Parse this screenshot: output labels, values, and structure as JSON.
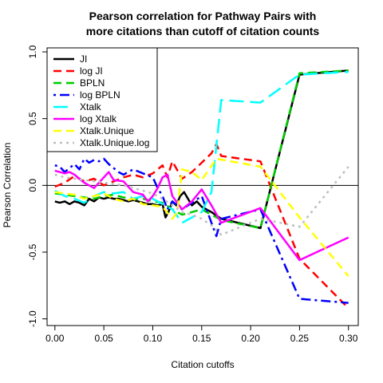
{
  "chart_data": {
    "type": "line",
    "title_lines": [
      "Pearson correlation for Pathway Pairs with",
      "more citations than cutoff of citation counts"
    ],
    "xlabel": "Citation cutoffs",
    "ylabel": "Pearson Correlation",
    "xlim": [
      -0.008,
      0.31
    ],
    "ylim": [
      -1.05,
      1.03
    ],
    "xticks": [
      0.0,
      0.05,
      0.1,
      0.15,
      0.2,
      0.25,
      0.3
    ],
    "xtick_labels": [
      "0.00",
      "0.05",
      "0.10",
      "0.15",
      "0.20",
      "0.25",
      "0.30"
    ],
    "yticks": [
      -1.0,
      -0.5,
      0.0,
      0.5,
      1.0
    ],
    "ytick_labels": [
      "-1.0",
      "-0.5",
      "0.0",
      "0.5",
      "1.0"
    ],
    "reference_line_y": 0,
    "grid": false,
    "legend_position": "top-left",
    "series": [
      {
        "name": "JI",
        "color": "#000000",
        "dash": "solid",
        "x": [
          0.0,
          0.005,
          0.01,
          0.015,
          0.02,
          0.025,
          0.03,
          0.035,
          0.04,
          0.045,
          0.05,
          0.055,
          0.06,
          0.065,
          0.07,
          0.075,
          0.08,
          0.085,
          0.09,
          0.095,
          0.1,
          0.105,
          0.11,
          0.113,
          0.116,
          0.12,
          0.124,
          0.128,
          0.132,
          0.136,
          0.14,
          0.145,
          0.15,
          0.16,
          0.17,
          0.21,
          0.25,
          0.3
        ],
        "y": [
          -0.12,
          -0.13,
          -0.12,
          -0.14,
          -0.12,
          -0.13,
          -0.15,
          -0.1,
          -0.12,
          -0.09,
          -0.1,
          -0.09,
          -0.1,
          -0.1,
          -0.11,
          -0.12,
          -0.11,
          -0.12,
          -0.13,
          -0.14,
          -0.14,
          -0.15,
          -0.14,
          -0.24,
          -0.2,
          -0.12,
          -0.15,
          -0.08,
          -0.05,
          -0.1,
          -0.15,
          -0.12,
          -0.16,
          -0.2,
          -0.25,
          -0.32,
          0.83,
          0.86
        ]
      },
      {
        "name": "log JI",
        "color": "#ff0000",
        "dash": "dashed",
        "x": [
          0.0,
          0.01,
          0.02,
          0.03,
          0.04,
          0.05,
          0.06,
          0.07,
          0.08,
          0.09,
          0.1,
          0.105,
          0.11,
          0.115,
          0.12,
          0.13,
          0.14,
          0.15,
          0.16,
          0.165,
          0.17,
          0.19,
          0.21,
          0.25,
          0.3
        ],
        "y": [
          -0.01,
          0.02,
          0.07,
          0.03,
          0.05,
          0.0,
          0.03,
          0.06,
          0.08,
          0.06,
          0.09,
          0.12,
          0.15,
          0.06,
          0.18,
          0.05,
          0.1,
          0.17,
          0.24,
          0.31,
          0.22,
          0.2,
          0.18,
          -0.55,
          -0.92
        ]
      },
      {
        "name": "BPLN",
        "color": "#00cc00",
        "dash": "dashed",
        "x": [
          0.0,
          0.01,
          0.02,
          0.03,
          0.04,
          0.05,
          0.06,
          0.07,
          0.08,
          0.09,
          0.1,
          0.11,
          0.12,
          0.13,
          0.14,
          0.15,
          0.17,
          0.21,
          0.25,
          0.3
        ],
        "y": [
          -0.06,
          -0.07,
          -0.08,
          -0.09,
          -0.1,
          -0.08,
          -0.07,
          -0.09,
          -0.1,
          -0.1,
          -0.12,
          -0.13,
          -0.18,
          -0.22,
          -0.2,
          -0.18,
          -0.26,
          -0.32,
          0.84,
          0.86
        ]
      },
      {
        "name": "log BPLN",
        "color": "#0000ff",
        "dash": "dotdash",
        "x": [
          0.0,
          0.005,
          0.01,
          0.015,
          0.02,
          0.025,
          0.03,
          0.035,
          0.04,
          0.045,
          0.05,
          0.055,
          0.06,
          0.065,
          0.07,
          0.08,
          0.09,
          0.1,
          0.105,
          0.11,
          0.115,
          0.12,
          0.13,
          0.14,
          0.15,
          0.16,
          0.165,
          0.17,
          0.21,
          0.25,
          0.3
        ],
        "y": [
          0.15,
          0.14,
          0.1,
          0.13,
          0.16,
          0.12,
          0.2,
          0.17,
          0.19,
          0.18,
          0.2,
          0.16,
          0.13,
          0.1,
          0.08,
          0.12,
          0.09,
          0.06,
          -0.02,
          -0.08,
          -0.18,
          -0.12,
          -0.18,
          -0.13,
          -0.08,
          -0.28,
          -0.38,
          -0.25,
          -0.18,
          -0.85,
          -0.88
        ]
      },
      {
        "name": "Xtalk",
        "color": "#00ffff",
        "dash": "longdash",
        "x": [
          0.0,
          0.01,
          0.02,
          0.03,
          0.04,
          0.05,
          0.06,
          0.07,
          0.08,
          0.09,
          0.1,
          0.11,
          0.12,
          0.13,
          0.14,
          0.15,
          0.16,
          0.17,
          0.21,
          0.25,
          0.3
        ],
        "y": [
          -0.04,
          -0.08,
          -0.1,
          -0.13,
          -0.08,
          -0.05,
          -0.06,
          -0.05,
          -0.1,
          -0.08,
          -0.1,
          -0.14,
          -0.18,
          -0.28,
          -0.24,
          -0.2,
          -0.05,
          0.64,
          0.62,
          0.83,
          0.85
        ]
      },
      {
        "name": "log Xtalk",
        "color": "#ff00ff",
        "dash": "solid",
        "x": [
          0.0,
          0.005,
          0.01,
          0.015,
          0.02,
          0.025,
          0.03,
          0.04,
          0.05,
          0.055,
          0.06,
          0.07,
          0.08,
          0.09,
          0.095,
          0.1,
          0.105,
          0.11,
          0.115,
          0.12,
          0.13,
          0.14,
          0.15,
          0.16,
          0.17,
          0.21,
          0.25,
          0.3
        ],
        "y": [
          0.11,
          0.1,
          0.09,
          0.1,
          0.08,
          0.05,
          0.02,
          -0.02,
          0.06,
          0.1,
          0.04,
          0.03,
          -0.05,
          -0.07,
          -0.12,
          -0.08,
          -0.02,
          0.06,
          0.08,
          -0.08,
          -0.18,
          -0.12,
          -0.03,
          -0.15,
          -0.28,
          -0.17,
          -0.56,
          -0.39
        ]
      },
      {
        "name": "Xtalk.Unique",
        "color": "#ffff00",
        "dash": "dashed",
        "x": [
          0.0,
          0.01,
          0.02,
          0.03,
          0.04,
          0.05,
          0.06,
          0.07,
          0.08,
          0.09,
          0.1,
          0.11,
          0.12,
          0.125,
          0.13,
          0.14,
          0.15,
          0.165,
          0.21,
          0.25,
          0.3
        ],
        "y": [
          -0.05,
          -0.06,
          -0.07,
          -0.1,
          -0.08,
          -0.06,
          -0.1,
          -0.12,
          -0.1,
          -0.14,
          -0.15,
          -0.16,
          -0.25,
          -0.2,
          0.12,
          0.1,
          0.04,
          0.2,
          0.14,
          -0.24,
          -0.68
        ]
      },
      {
        "name": "Xtalk.Unique.log",
        "color": "#bebebe",
        "dash": "dotted",
        "x": [
          0.0,
          0.01,
          0.02,
          0.03,
          0.04,
          0.05,
          0.06,
          0.07,
          0.08,
          0.09,
          0.1,
          0.11,
          0.12,
          0.13,
          0.14,
          0.15,
          0.16,
          0.17,
          0.21,
          0.25,
          0.3
        ],
        "y": [
          0.08,
          0.06,
          0.05,
          0.04,
          0.03,
          0.02,
          0.01,
          0.0,
          -0.02,
          -0.04,
          -0.06,
          -0.1,
          -0.15,
          -0.2,
          -0.22,
          -0.25,
          -0.3,
          -0.37,
          -0.25,
          -0.31,
          0.14
        ]
      }
    ]
  }
}
